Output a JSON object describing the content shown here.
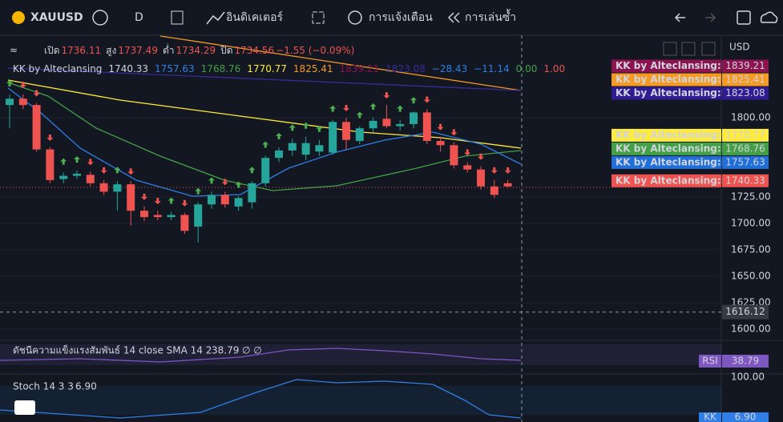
{
  "toolbar": {
    "symbol": "XAUUSD",
    "interval": "D",
    "indicators": "อินดิเคเตอร์",
    "alerts": "การแจ้งเตือน",
    "replay": "การเล่นซ้ำ"
  },
  "chart": {
    "currency": "USD",
    "ohlc": {
      "open_label": "เปิด",
      "open": "1736.11",
      "high_label": "สูง",
      "high": "1737.49",
      "low_label": "ต่ำ",
      "low": "1734.29",
      "close_label": "ปิด",
      "close": "1734.56",
      "change": "−1.55 (−0.09%)"
    },
    "indicator": {
      "name": "KK by Alteclansing",
      "values": [
        {
          "text": "1740.33",
          "color": "#d1d4dc"
        },
        {
          "text": "1757.63",
          "color": "#2f7fe6"
        },
        {
          "text": "1768.76",
          "color": "#43a047"
        },
        {
          "text": "1770.77",
          "color": "#ffeb3b"
        },
        {
          "text": "1825.41",
          "color": "#f59a23"
        },
        {
          "text": "1839.21",
          "color": "#8b1450"
        },
        {
          "text": "1823.08",
          "color": "#3a2a9a"
        },
        {
          "text": "−28.43",
          "color": "#2f7fe6"
        },
        {
          "text": "−11.14",
          "color": "#2f7fe6"
        },
        {
          "text": "0.00",
          "color": "#43a047"
        },
        {
          "text": "1.00",
          "color": "#ef5350"
        }
      ]
    },
    "price_labels": [
      {
        "name": "KK by Alteclansing:Plot",
        "value": 1839.21,
        "color": "#8b1450",
        "text_color": "#ffffff"
      },
      {
        "name": "KK by Alteclansing:Plot",
        "value": 1825.41,
        "color": "#f59a23",
        "text_color": "#131722"
      },
      {
        "name": "KK by Alteclansing:Plot",
        "value": 1823.08,
        "color": "#311b92",
        "text_color": "#ffffff"
      },
      {
        "name": "KK by Alteclansing:Plot",
        "value": 1770.77,
        "color": "#ffeb3b",
        "text_color": "#131722"
      },
      {
        "name": "KK by Alteclansing:Plot",
        "value": 1768.76,
        "color": "#43a047",
        "text_color": "#ffffff"
      },
      {
        "name": "KK by Alteclansing:Plot",
        "value": 1757.63,
        "color": "#1e6fd9",
        "text_color": "#ffffff"
      },
      {
        "name": "KK by Alteclansing:Plot",
        "value": 1740.33,
        "color": "#ef5350",
        "text_color": "#ffffff"
      }
    ],
    "crosshair_price": {
      "value": 1616.12,
      "label": "1616.12"
    },
    "yticks": [
      {
        "value": 1800,
        "label": "1800.00"
      },
      {
        "value": 1725,
        "label": "1725.00"
      },
      {
        "value": 1700,
        "label": "1700.00"
      },
      {
        "value": 1675,
        "label": "1675.00"
      },
      {
        "value": 1650,
        "label": "1650.00"
      },
      {
        "value": 1625,
        "label": "1625.00"
      },
      {
        "value": 1600,
        "label": "1600.00"
      }
    ],
    "candles": [
      [
        1812,
        1822,
        1790,
        1818
      ],
      [
        1818,
        1822,
        1808,
        1812
      ],
      [
        1812,
        1814,
        1768,
        1770
      ],
      [
        1770,
        1772,
        1738,
        1741
      ],
      [
        1742,
        1748,
        1738,
        1745
      ],
      [
        1745,
        1750,
        1742,
        1747
      ],
      [
        1746,
        1749,
        1735,
        1738
      ],
      [
        1738,
        1741,
        1727,
        1730
      ],
      [
        1730,
        1740,
        1712,
        1737
      ],
      [
        1737,
        1740,
        1698,
        1712
      ],
      [
        1712,
        1716,
        1702,
        1706
      ],
      [
        1708,
        1712,
        1703,
        1706
      ],
      [
        1706,
        1711,
        1703,
        1708
      ],
      [
        1708,
        1710,
        1690,
        1693
      ],
      [
        1697,
        1720,
        1682,
        1718
      ],
      [
        1718,
        1730,
        1714,
        1727
      ],
      [
        1727,
        1730,
        1715,
        1718
      ],
      [
        1716,
        1726,
        1712,
        1724
      ],
      [
        1720,
        1740,
        1714,
        1738
      ],
      [
        1738,
        1764,
        1735,
        1762
      ],
      [
        1762,
        1772,
        1758,
        1769
      ],
      [
        1769,
        1780,
        1764,
        1776
      ],
      [
        1765,
        1782,
        1760,
        1776
      ],
      [
        1768,
        1779,
        1764,
        1774
      ],
      [
        1767,
        1798,
        1765,
        1796
      ],
      [
        1796,
        1800,
        1770,
        1779
      ],
      [
        1778,
        1792,
        1775,
        1790
      ],
      [
        1790,
        1800,
        1786,
        1797
      ],
      [
        1799,
        1812,
        1790,
        1792
      ],
      [
        1792,
        1798,
        1788,
        1794
      ],
      [
        1794,
        1806,
        1790,
        1805
      ],
      [
        1805,
        1808,
        1775,
        1778
      ],
      [
        1778,
        1782,
        1768,
        1774
      ],
      [
        1774,
        1777,
        1752,
        1755
      ],
      [
        1755,
        1758,
        1748,
        1751
      ],
      [
        1751,
        1754,
        1732,
        1735
      ],
      [
        1735,
        1741,
        1724,
        1727
      ],
      [
        1738,
        1741,
        1734,
        1735
      ]
    ]
  },
  "rsi": {
    "title": "ดัชนีความแข็งแรงสัมพันธ์ 14 close SMA 14 2",
    "value": "38.79",
    "extra": "∅ ∅",
    "tag": "RSI",
    "tag_value": "38.79"
  },
  "stoch": {
    "title": "Stoch 14 3 3",
    "value": "6.90",
    "level": "100.00",
    "tag": "KK",
    "tag_value": "6.90"
  }
}
